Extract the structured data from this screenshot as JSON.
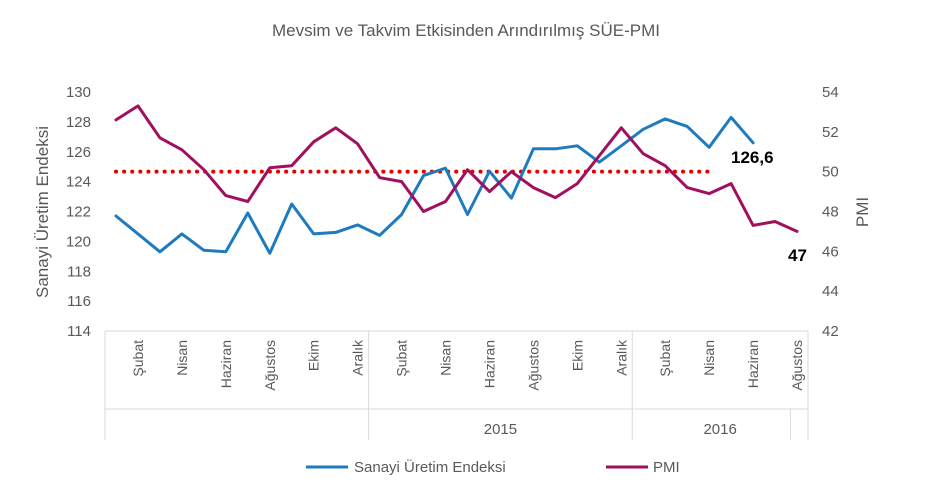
{
  "chart_data": {
    "type": "line",
    "title": "Mevsim ve Takvim Etkisinden Arındırılmış SÜE-PMI",
    "ylabel_left": "Sanayi Üretim Endeksi",
    "ylabel_right": "PMI",
    "ylim_left": [
      114,
      130
    ],
    "ylim_right": [
      42,
      54
    ],
    "yticks_left": [
      "114",
      "116",
      "118",
      "120",
      "122",
      "124",
      "126",
      "128",
      "130"
    ],
    "yticks_right": [
      "42",
      "44",
      "46",
      "48",
      "50",
      "52",
      "54"
    ],
    "x_tick_labels": [
      {
        "index": 1,
        "label": "Şubat"
      },
      {
        "index": 3,
        "label": "Nisan"
      },
      {
        "index": 5,
        "label": "Haziran"
      },
      {
        "index": 7,
        "label": "Ağustos"
      },
      {
        "index": 9,
        "label": "Ekim"
      },
      {
        "index": 11,
        "label": "Aralık"
      },
      {
        "index": 13,
        "label": "Şubat"
      },
      {
        "index": 15,
        "label": "Nisan"
      },
      {
        "index": 17,
        "label": "Haziran"
      },
      {
        "index": 19,
        "label": "Ağustos"
      },
      {
        "index": 21,
        "label": "Ekim"
      },
      {
        "index": 23,
        "label": "Aralık"
      },
      {
        "index": 25,
        "label": "Şubat"
      },
      {
        "index": 27,
        "label": "Nisan"
      },
      {
        "index": 29,
        "label": "Haziran"
      },
      {
        "index": 31,
        "label": "Ağustos"
      }
    ],
    "year_groups": [
      {
        "label": "",
        "start": 0,
        "end": 11
      },
      {
        "label": "2015",
        "start": 12,
        "end": 23
      },
      {
        "label": "2016",
        "start": 24,
        "end": 31
      }
    ],
    "series": [
      {
        "name": "Sanayi Üretim Endeksi",
        "color": "#1f7bbf",
        "axis": "left",
        "values": [
          121.7,
          120.5,
          119.3,
          120.5,
          119.4,
          119.3,
          121.9,
          119.2,
          122.5,
          120.5,
          120.6,
          121.1,
          120.4,
          121.8,
          124.4,
          124.9,
          121.8,
          124.7,
          122.9,
          126.2,
          126.2,
          126.4,
          125.3,
          126.4,
          127.5,
          128.2,
          127.7,
          126.3,
          128.3,
          126.6
        ]
      },
      {
        "name": "PMI",
        "color": "#a0105f",
        "axis": "right",
        "values": [
          52.6,
          53.3,
          51.7,
          51.1,
          50.1,
          48.8,
          48.5,
          50.2,
          50.3,
          51.5,
          52.2,
          51.4,
          49.7,
          49.5,
          48.0,
          48.5,
          50.1,
          49.0,
          50.0,
          49.2,
          48.7,
          49.4,
          50.8,
          52.2,
          50.9,
          50.3,
          49.2,
          48.9,
          49.4,
          47.3,
          47.5,
          47.0
        ]
      }
    ],
    "reference_line": {
      "value": 50,
      "axis": "right",
      "color": "#e60000",
      "style": "dotted"
    },
    "annotations": [
      {
        "text": "126,6",
        "series": "Sanayi Üretim Endeksi"
      },
      {
        "text": "47",
        "series": "PMI"
      }
    ],
    "legend_position": "bottom",
    "grid": false
  }
}
